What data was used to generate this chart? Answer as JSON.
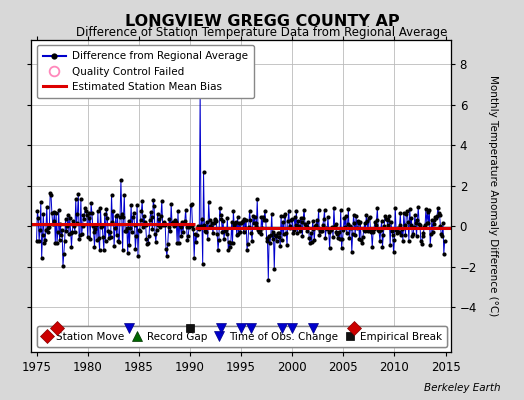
{
  "title": "LONGVIEW GREGG COUNTY AP",
  "subtitle": "Difference of Station Temperature Data from Regional Average",
  "ylabel": "Monthly Temperature Anomaly Difference (°C)",
  "xlim": [
    1974.5,
    2015.5
  ],
  "ylim": [
    -6.2,
    9.2
  ],
  "yticks": [
    -4,
    -2,
    0,
    2,
    4,
    6,
    8
  ],
  "xticks": [
    1975,
    1980,
    1985,
    1990,
    1995,
    2000,
    2005,
    2010,
    2015
  ],
  "bg_color": "#d8d8d8",
  "plot_bg_color": "#ffffff",
  "line_color": "#0000cc",
  "marker_color": "#000000",
  "bias_color": "#dd0000",
  "station_move_years": [
    1977,
    2006
  ],
  "obs_change_years": [
    1984,
    1993,
    1995,
    1996,
    1999,
    2000,
    2002
  ],
  "empirical_break_years": [
    1990
  ],
  "record_gap_years": [],
  "bias_segments": [
    {
      "x": [
        1974.5,
        1990.5
      ],
      "y": [
        0.12,
        0.12
      ]
    },
    {
      "x": [
        1990.5,
        2015.5
      ],
      "y": [
        -0.08,
        -0.08
      ]
    }
  ],
  "grid_color": "#bbbbbb",
  "watermark": "Berkeley Earth",
  "marker_size": 3.0,
  "bias_linewidth": 2.2,
  "data_linewidth": 0.7,
  "event_y": -5.0,
  "vertical_grid_years": [
    1980,
    1985,
    1990,
    1995,
    2000,
    2005,
    2010
  ]
}
